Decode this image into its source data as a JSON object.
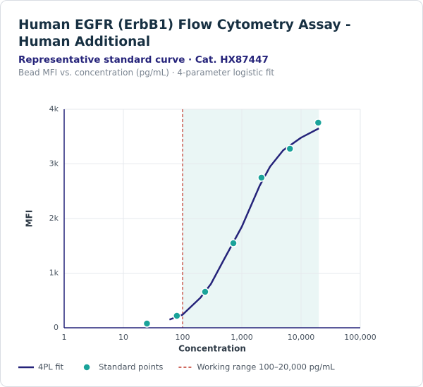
{
  "chart_data": {
    "type": "scatter",
    "title": "Human EGFR (ErbB1) Flow Cytometry Assay -Human Additional",
    "subtitle": "Representative standard curve · Cat. HX87447",
    "note": "Bead MFI vs. concentration (pg/mL) · 4-parameter logistic fit",
    "x_label": "Concentration",
    "y_label": "MFI",
    "xscale": "log",
    "grid": true,
    "xlim": [
      1,
      100000
    ],
    "ylim": [
      0,
      4000
    ],
    "xticks": [
      1,
      10,
      100,
      {
        "value": 1000,
        "label": "1,000"
      },
      {
        "value": 10000,
        "label": "10,000"
      },
      {
        "value": 100000,
        "label": "100,000"
      }
    ],
    "yticks": [
      0,
      {
        "value": 1000,
        "label": "1k"
      },
      {
        "value": 2000,
        "label": "2k"
      },
      {
        "value": 3000,
        "label": "3k"
      },
      {
        "value": 4000,
        "label": "4k"
      }
    ],
    "working_range": {
      "x": [
        100,
        20000
      ],
      "label": "Working range 100–20,000 pg/mL",
      "color": "#c0392b",
      "fill": "#eaf6f5"
    },
    "series": [
      {
        "name": "4PL fit",
        "kind": "line",
        "color": "#25237a",
        "x": [
          60,
          100,
          200,
          300,
          500,
          1000,
          2000,
          3000,
          5000,
          10000,
          20000
        ],
        "values": [
          150,
          240,
          550,
          800,
          1250,
          1850,
          2600,
          2950,
          3250,
          3480,
          3650
        ]
      },
      {
        "name": "Standard points",
        "kind": "scatter",
        "color": "#1aa39a",
        "x": [
          25,
          80,
          240,
          720,
          2150,
          6500,
          19500
        ],
        "values": [
          77,
          219,
          658,
          1548,
          2748,
          3277,
          3755
        ]
      }
    ]
  }
}
